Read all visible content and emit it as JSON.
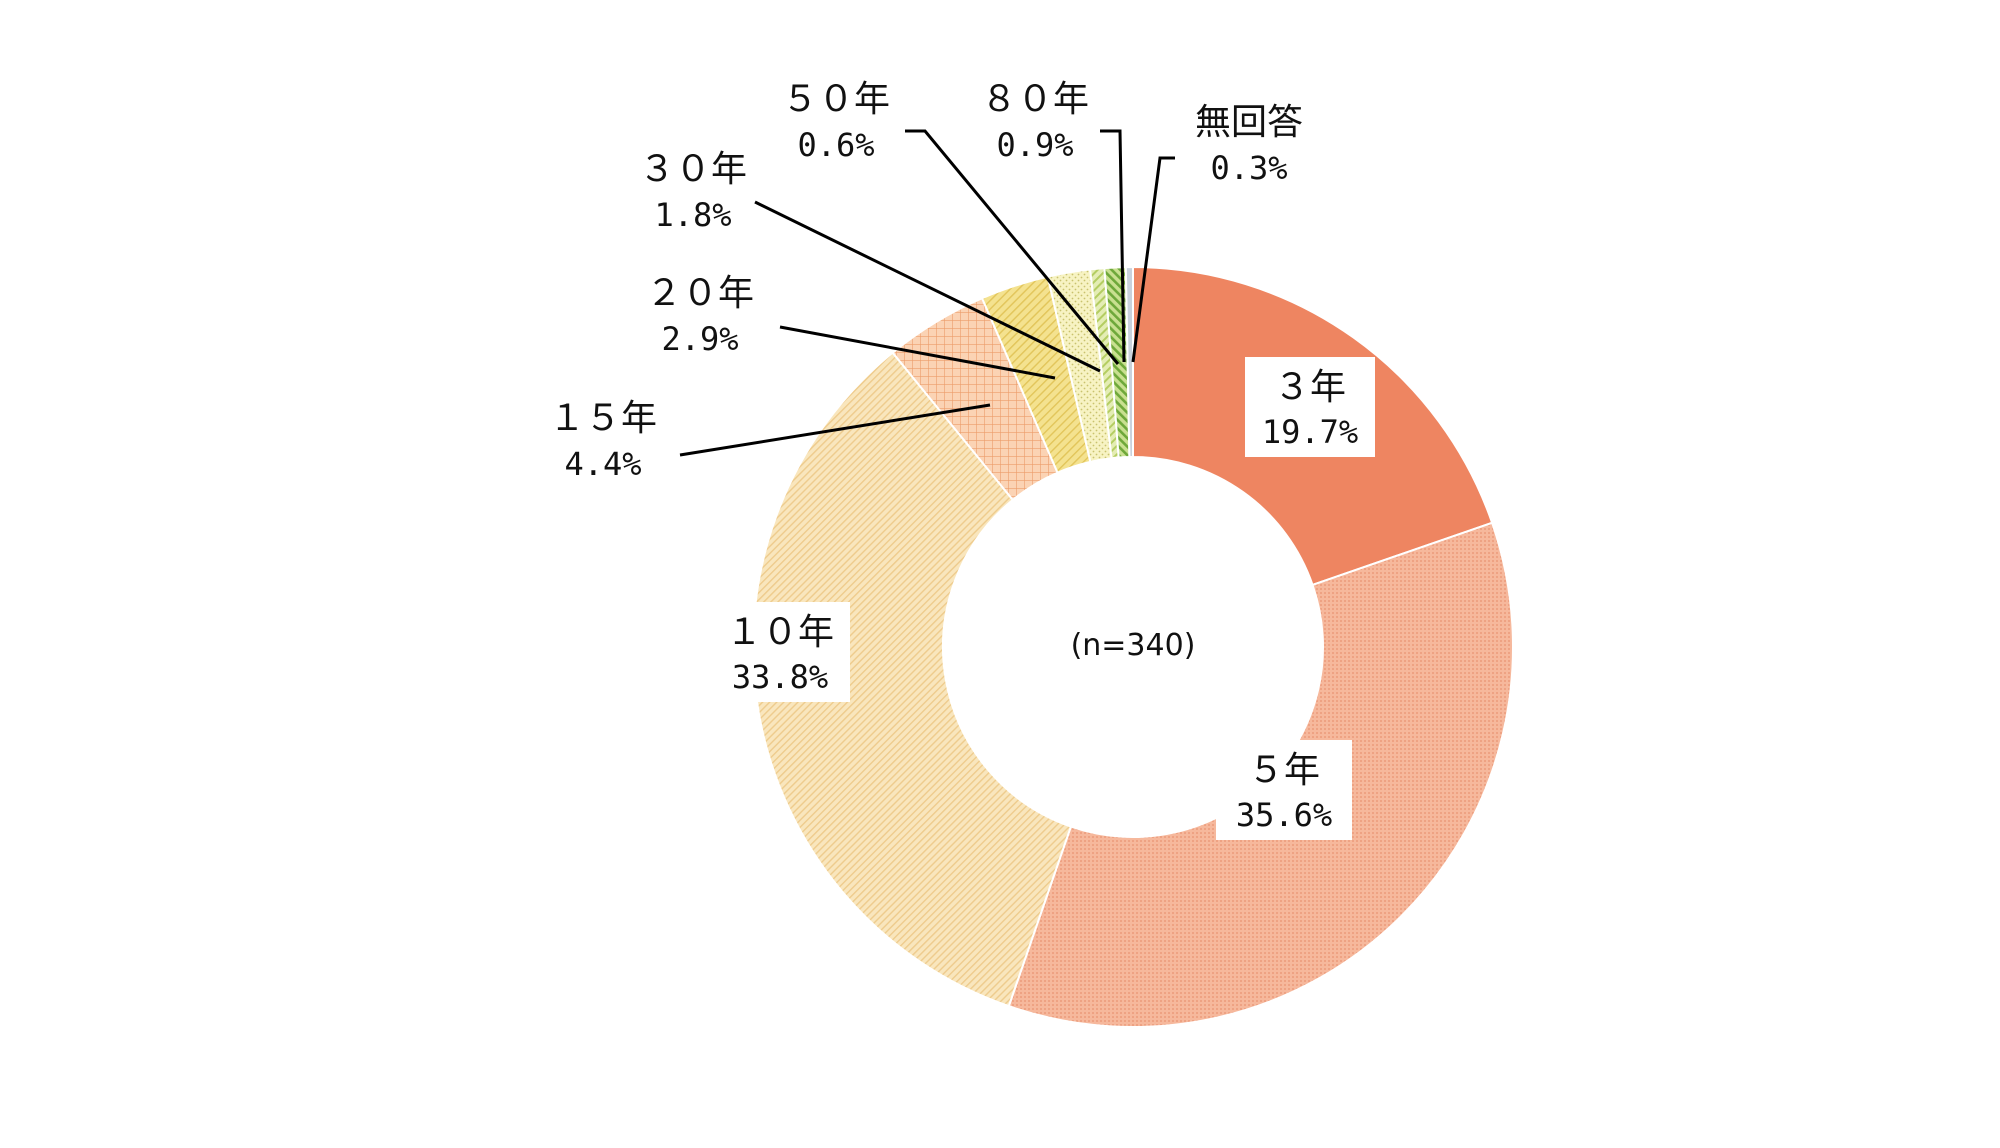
{
  "chart_data": {
    "type": "pie",
    "variant": "donut",
    "center_label": "(n=340)",
    "categories": [
      "３年",
      "５年",
      "１０年",
      "１５年",
      "２０年",
      "３０年",
      "５０年",
      "８０年",
      "無回答"
    ],
    "values": [
      19.7,
      35.6,
      33.8,
      4.4,
      2.9,
      1.8,
      0.6,
      0.9,
      0.3
    ],
    "value_labels": [
      "19.7%",
      "35.6%",
      "33.8%",
      "4.4%",
      "2.9%",
      "1.8%",
      "0.6%",
      "0.9%",
      "0.3%"
    ],
    "colors": [
      "#ee8561",
      "#f3ad90",
      "#f6dfaa",
      "#f5b98f",
      "#f2dc85",
      "#f0ecb0",
      "#d5e39a",
      "#a2cc58",
      "#c9d2dc"
    ],
    "label_placement": [
      "inside",
      "inside",
      "inside",
      "leader",
      "leader",
      "leader",
      "leader",
      "leader",
      "leader"
    ],
    "legend": "none"
  }
}
